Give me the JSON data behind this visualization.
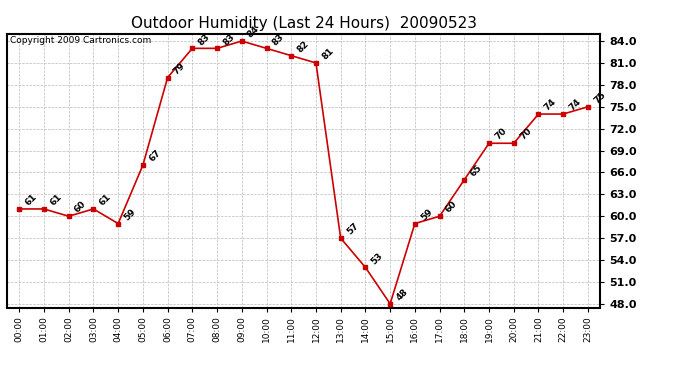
{
  "title": "Outdoor Humidity (Last 24 Hours)  20090523",
  "copyright": "Copyright 2009 Cartronics.com",
  "hours": [
    "00:00",
    "01:00",
    "02:00",
    "03:00",
    "04:00",
    "05:00",
    "06:00",
    "07:00",
    "08:00",
    "09:00",
    "10:00",
    "11:00",
    "12:00",
    "13:00",
    "14:00",
    "15:00",
    "16:00",
    "17:00",
    "18:00",
    "19:00",
    "20:00",
    "21:00",
    "22:00",
    "23:00"
  ],
  "values": [
    61,
    61,
    60,
    61,
    59,
    67,
    79,
    83,
    83,
    84,
    83,
    82,
    81,
    57,
    53,
    48,
    59,
    60,
    65,
    70,
    70,
    74,
    74,
    75
  ],
  "ylim": [
    47.5,
    85.0
  ],
  "yticks": [
    48.0,
    51.0,
    54.0,
    57.0,
    60.0,
    63.0,
    66.0,
    69.0,
    72.0,
    75.0,
    78.0,
    81.0,
    84.0
  ],
  "line_color": "#cc0000",
  "marker_color": "#cc0000",
  "grid_color": "#bbbbbb",
  "bg_color": "#ffffff",
  "title_fontsize": 11,
  "label_fontsize": 6.5,
  "copyright_fontsize": 6.5,
  "ytick_fontsize": 8,
  "xtick_fontsize": 6.5
}
